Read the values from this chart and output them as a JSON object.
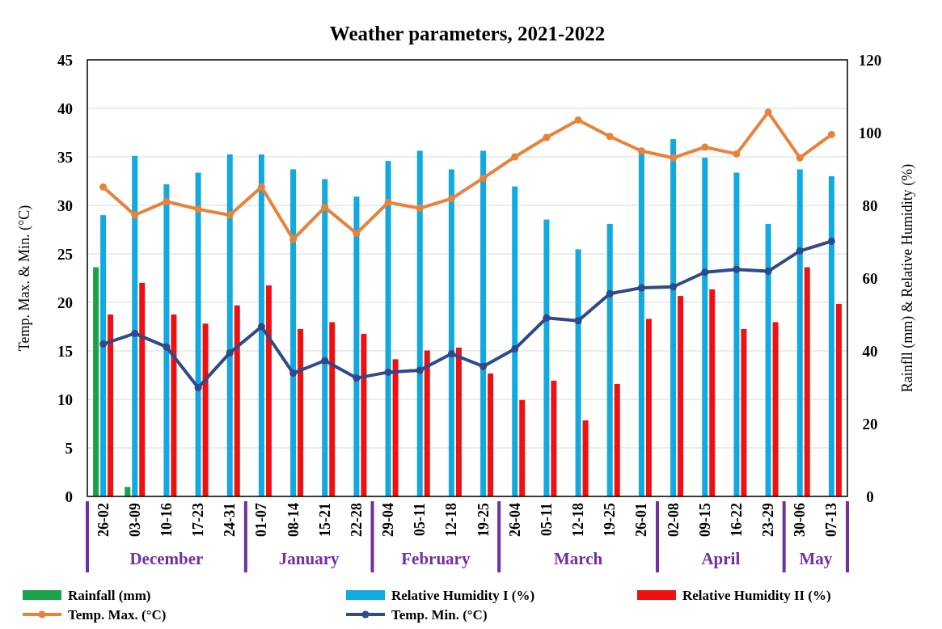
{
  "chart_data": {
    "type": "bar",
    "title": "Weather parameters, 2021-2022",
    "categories": [
      "26-02",
      "03-09",
      "10-16",
      "17-23",
      "24-31",
      "01-07",
      "08-14",
      "15-21",
      "22-28",
      "29-04",
      "05-11",
      "12-18",
      "19-25",
      "26-04",
      "05-11",
      "12-18",
      "19-25",
      "26-01",
      "02-08",
      "09-15",
      "16-22",
      "23-29",
      "30-06",
      "07-13"
    ],
    "annotations": [
      "December",
      "January",
      "February",
      "March",
      "April",
      "May"
    ],
    "ylabel": "Temp. Max. & Min. (°C)",
    "y2label": "Rainfll (mm) & Relative Humidity (%)",
    "ylim": [
      0,
      45
    ],
    "yticks": [
      0,
      5,
      10,
      15,
      20,
      25,
      30,
      35,
      40,
      45
    ],
    "y2lim": [
      0,
      120
    ],
    "y2ticks": [
      0,
      20,
      40,
      60,
      80,
      100,
      120
    ],
    "grid": "y",
    "legend": "bottom",
    "marker": "circle",
    "series": [
      {
        "name": "Rainfall (mm)",
        "type": "bar",
        "axis": "y2",
        "color": "#1aa34a",
        "values": [
          63.0,
          2.6,
          0,
          0,
          0,
          0,
          0,
          0,
          0,
          0,
          0,
          0,
          0,
          0,
          0,
          0,
          0,
          0,
          0,
          0,
          0,
          0,
          0,
          0
        ]
      },
      {
        "name": "Relative Humidity I (%)",
        "type": "bar",
        "axis": "y2",
        "color": "#12a9e0",
        "values": [
          77.3,
          93.6,
          85.8,
          89.0,
          94.0,
          94.0,
          89.9,
          87.2,
          82.4,
          92.2,
          95.0,
          89.9,
          95.0,
          85.2,
          76.1,
          67.9,
          74.9,
          94.7,
          98.2,
          93.1,
          89.0,
          74.9,
          89.9,
          88.0
        ]
      },
      {
        "name": "Relative Humidity II (%)",
        "type": "bar",
        "axis": "y2",
        "color": "#ee1111",
        "values": [
          50.0,
          58.7,
          50.0,
          47.5,
          52.5,
          58.0,
          46.0,
          47.9,
          44.7,
          37.7,
          40.1,
          40.9,
          33.8,
          26.5,
          31.8,
          20.9,
          30.9,
          48.8,
          55.1,
          56.9,
          46.0,
          47.9,
          63.0,
          52.9
        ]
      },
      {
        "name": "Temp. Max. (°C)",
        "type": "line",
        "color": "#e8823a",
        "values": [
          31.9,
          29.0,
          30.4,
          29.6,
          29.0,
          31.9,
          26.5,
          29.8,
          27.1,
          30.3,
          29.7,
          30.7,
          32.8,
          35.0,
          37.0,
          38.8,
          37.1,
          35.6,
          34.9,
          36.0,
          35.3,
          39.6,
          34.9,
          37.3
        ]
      },
      {
        "name": "Temp. Min. (°C)",
        "type": "line",
        "color": "#2e4a8a",
        "values": [
          15.7,
          16.8,
          15.4,
          11.2,
          14.8,
          17.5,
          12.7,
          14.0,
          12.2,
          12.8,
          13.0,
          14.7,
          13.4,
          15.2,
          18.4,
          18.1,
          20.9,
          21.5,
          21.6,
          23.1,
          23.4,
          23.2,
          25.3,
          26.3
        ]
      }
    ]
  }
}
